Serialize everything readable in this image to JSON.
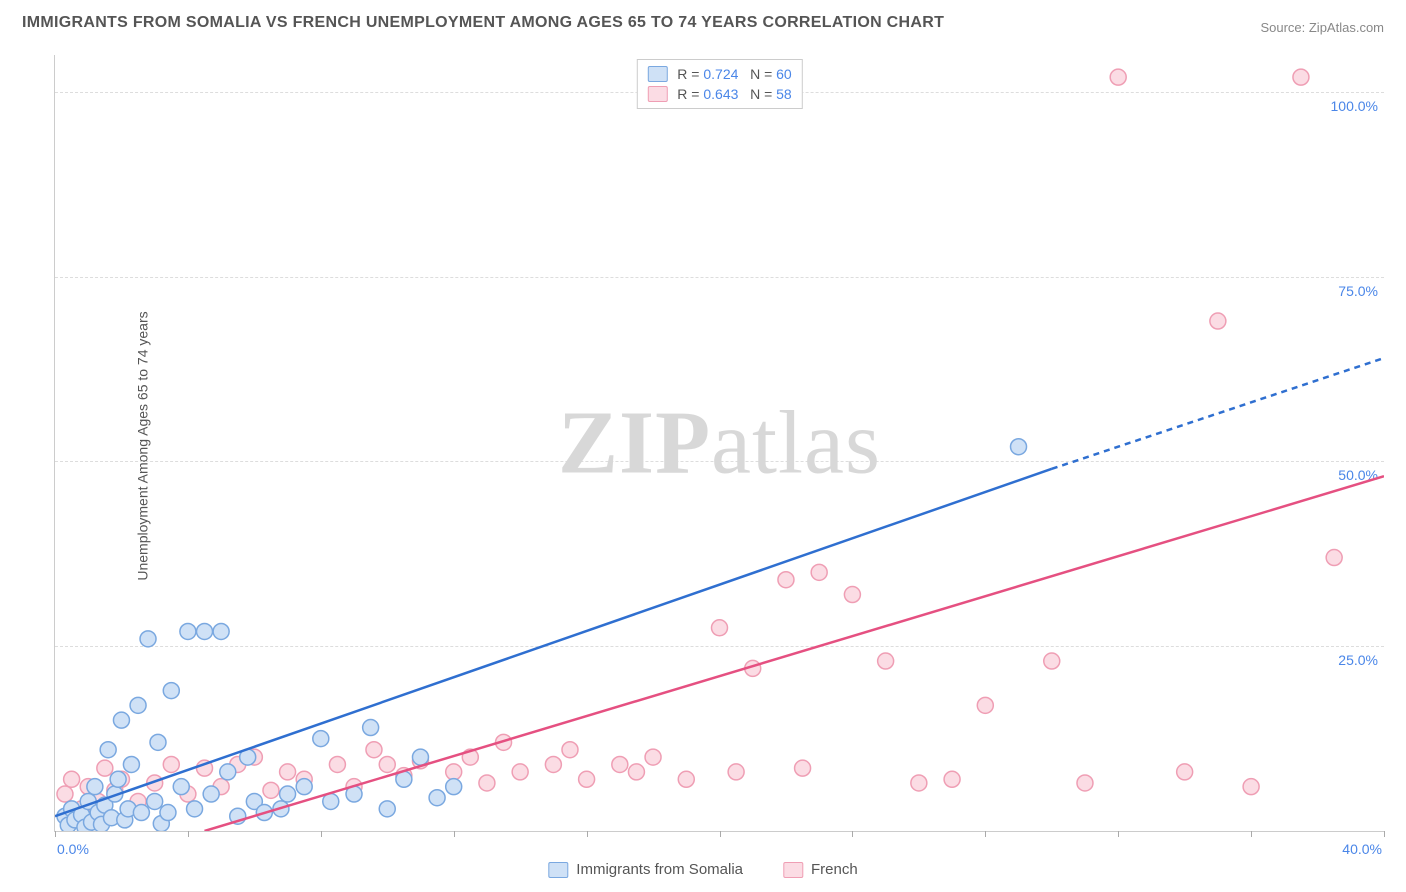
{
  "title": "IMMIGRANTS FROM SOMALIA VS FRENCH UNEMPLOYMENT AMONG AGES 65 TO 74 YEARS CORRELATION CHART",
  "source_label": "Source: ZipAtlas.com",
  "ylabel": "Unemployment Among Ages 65 to 74 years",
  "watermark": "ZIPatlas",
  "chart": {
    "type": "scatter",
    "xlim": [
      0,
      40
    ],
    "ylim": [
      0,
      105
    ],
    "x_ticks": [
      0,
      4,
      8,
      12,
      16,
      20,
      24,
      28,
      32,
      36,
      40
    ],
    "x_tick_labels": {
      "0": "0.0%",
      "40": "40.0%"
    },
    "y_ticks": [
      25,
      50,
      75,
      100
    ],
    "y_tick_labels": {
      "25": "25.0%",
      "50": "50.0%",
      "75": "75.0%",
      "100": "100.0%"
    },
    "grid_color": "#dddddd",
    "background_color": "#ffffff",
    "marker_radius": 8,
    "marker_stroke_width": 1.5,
    "line_width": 2.5,
    "label_fontsize": 14,
    "label_color": "#4a86e8",
    "series": [
      {
        "name": "Immigrants from Somalia",
        "R": "0.724",
        "N": "60",
        "fill_color": "#cfe1f6",
        "stroke_color": "#7aa8e0",
        "line_color": "#2f6fd0",
        "line": {
          "x1": 0,
          "y1": 2,
          "x2_solid": 30,
          "y2_solid": 49,
          "x2_dash": 40,
          "y2_dash": 64
        },
        "points": [
          [
            0.3,
            2
          ],
          [
            0.4,
            0.8
          ],
          [
            0.5,
            3
          ],
          [
            0.6,
            1.5
          ],
          [
            0.8,
            2.2
          ],
          [
            0.9,
            0.5
          ],
          [
            1.0,
            4
          ],
          [
            1.1,
            1.2
          ],
          [
            1.2,
            6
          ],
          [
            1.3,
            2.5
          ],
          [
            1.4,
            0.9
          ],
          [
            1.5,
            3.5
          ],
          [
            1.6,
            11
          ],
          [
            1.7,
            1.8
          ],
          [
            1.8,
            5
          ],
          [
            1.9,
            7
          ],
          [
            2.0,
            15
          ],
          [
            2.1,
            1.5
          ],
          [
            2.2,
            3
          ],
          [
            2.3,
            9
          ],
          [
            2.5,
            17
          ],
          [
            2.6,
            2.5
          ],
          [
            2.8,
            26
          ],
          [
            3.0,
            4
          ],
          [
            3.1,
            12
          ],
          [
            3.2,
            1
          ],
          [
            3.4,
            2.5
          ],
          [
            3.5,
            19
          ],
          [
            3.8,
            6
          ],
          [
            4.0,
            27
          ],
          [
            4.2,
            3
          ],
          [
            4.5,
            27
          ],
          [
            4.7,
            5
          ],
          [
            5.0,
            27
          ],
          [
            5.2,
            8
          ],
          [
            5.5,
            2
          ],
          [
            5.8,
            10
          ],
          [
            6.0,
            4
          ],
          [
            6.3,
            2.5
          ],
          [
            6.8,
            3
          ],
          [
            7.0,
            5
          ],
          [
            7.5,
            6
          ],
          [
            8.0,
            12.5
          ],
          [
            8.3,
            4
          ],
          [
            9.0,
            5
          ],
          [
            9.5,
            14
          ],
          [
            10.0,
            3
          ],
          [
            10.5,
            7
          ],
          [
            11.0,
            10
          ],
          [
            11.5,
            4.5
          ],
          [
            12.0,
            6
          ],
          [
            29.0,
            52
          ]
        ]
      },
      {
        "name": "French",
        "R": "0.643",
        "N": "58",
        "fill_color": "#fbdce4",
        "stroke_color": "#ef9eb4",
        "line_color": "#e55081",
        "line": {
          "x1": 4.5,
          "y1": 0,
          "x2_solid": 40,
          "y2_solid": 48,
          "x2_dash": 40,
          "y2_dash": 48
        },
        "points": [
          [
            0.3,
            5
          ],
          [
            0.5,
            7
          ],
          [
            0.8,
            3
          ],
          [
            1.0,
            6
          ],
          [
            1.3,
            4
          ],
          [
            1.5,
            8.5
          ],
          [
            1.8,
            5.5
          ],
          [
            2.0,
            7
          ],
          [
            2.5,
            4
          ],
          [
            3.0,
            6.5
          ],
          [
            3.5,
            9
          ],
          [
            4.0,
            5
          ],
          [
            4.5,
            8.5
          ],
          [
            5.0,
            6
          ],
          [
            5.5,
            9
          ],
          [
            6.0,
            10
          ],
          [
            6.5,
            5.5
          ],
          [
            7.0,
            8
          ],
          [
            7.5,
            7
          ],
          [
            8.5,
            9
          ],
          [
            9.0,
            6
          ],
          [
            9.6,
            11
          ],
          [
            10.0,
            9
          ],
          [
            10.5,
            7.5
          ],
          [
            11.0,
            9.5
          ],
          [
            12.0,
            8
          ],
          [
            12.5,
            10
          ],
          [
            13.0,
            6.5
          ],
          [
            13.5,
            12
          ],
          [
            14.0,
            8
          ],
          [
            15.0,
            9
          ],
          [
            15.5,
            11
          ],
          [
            16.0,
            7
          ],
          [
            17.0,
            9
          ],
          [
            17.5,
            8
          ],
          [
            18.0,
            10
          ],
          [
            19.0,
            7
          ],
          [
            20.0,
            27.5
          ],
          [
            20.5,
            8
          ],
          [
            21.0,
            22
          ],
          [
            22.0,
            34
          ],
          [
            22.5,
            8.5
          ],
          [
            23.0,
            35
          ],
          [
            24.0,
            32
          ],
          [
            25.0,
            23
          ],
          [
            26.0,
            6.5
          ],
          [
            27.0,
            7
          ],
          [
            28.0,
            17
          ],
          [
            30.0,
            23
          ],
          [
            31.0,
            6.5
          ],
          [
            32.0,
            102
          ],
          [
            34.0,
            8
          ],
          [
            35.0,
            69
          ],
          [
            36.0,
            6
          ],
          [
            37.5,
            102
          ],
          [
            38.5,
            37
          ]
        ]
      }
    ],
    "legend_top": {
      "r_label": "R =",
      "n_label": "N ="
    },
    "legend_bottom": [
      {
        "label": "Immigrants from Somalia",
        "fill": "#cfe1f6",
        "stroke": "#7aa8e0"
      },
      {
        "label": "French",
        "fill": "#fbdce4",
        "stroke": "#ef9eb4"
      }
    ]
  }
}
